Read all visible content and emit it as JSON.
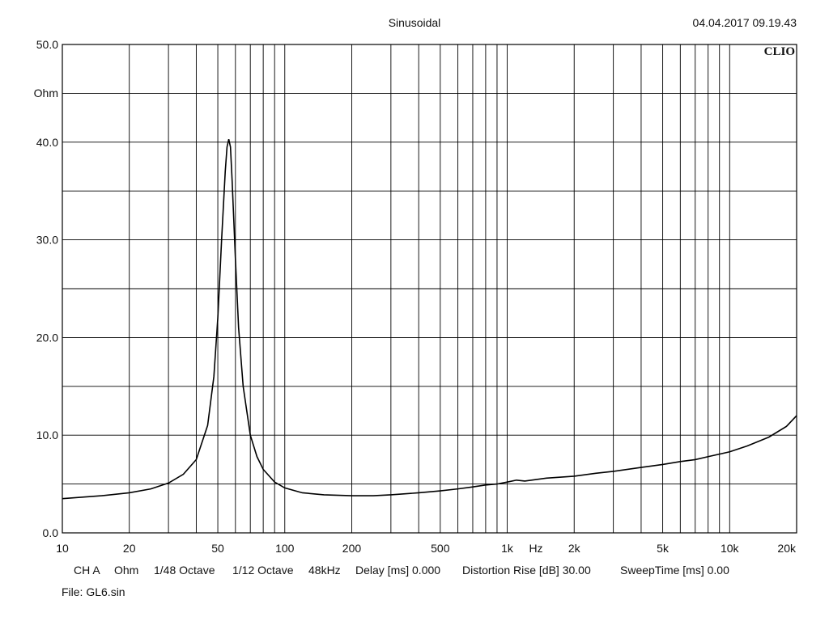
{
  "header": {
    "title": "Sinusoidal",
    "timestamp": "04.04.2017 09.19.43",
    "logo": "CLIO"
  },
  "chart_data": {
    "type": "line",
    "title": "Sinusoidal",
    "xlabel": "Hz",
    "ylabel": "Ohm",
    "xscale": "log",
    "xlim": [
      10,
      20000
    ],
    "ylim": [
      0,
      50
    ],
    "grid": true,
    "x_tick_labels": [
      {
        "value": 10,
        "label": "10"
      },
      {
        "value": 20,
        "label": "20"
      },
      {
        "value": 50,
        "label": "50"
      },
      {
        "value": 100,
        "label": "100"
      },
      {
        "value": 200,
        "label": "200"
      },
      {
        "value": 500,
        "label": "500"
      },
      {
        "value": 1000,
        "label": "1k"
      },
      {
        "value": 2000,
        "label": "2k"
      },
      {
        "value": 5000,
        "label": "5k"
      },
      {
        "value": 10000,
        "label": "10k"
      },
      {
        "value": 20000,
        "label": "20k"
      }
    ],
    "y_tick_labels": [
      {
        "value": 0,
        "label": "0.0"
      },
      {
        "value": 10,
        "label": "10.0"
      },
      {
        "value": 20,
        "label": "20.0"
      },
      {
        "value": 30,
        "label": "30.0"
      },
      {
        "value": 40,
        "label": "40.0"
      },
      {
        "value": 50,
        "label": "50.0"
      }
    ],
    "series": [
      {
        "x": [
          10,
          15,
          20,
          25,
          30,
          35,
          40,
          45,
          48,
          50,
          52,
          54,
          55,
          56,
          57,
          58,
          60,
          62,
          65,
          70,
          75,
          80,
          90,
          100,
          120,
          150,
          200,
          250,
          300,
          400,
          500,
          600,
          700,
          800,
          900,
          1000,
          1100,
          1200,
          1500,
          2000,
          2500,
          3000,
          4000,
          5000,
          6000,
          7000,
          8000,
          10000,
          12000,
          15000,
          18000,
          20000
        ],
        "y": [
          3.5,
          3.8,
          4.1,
          4.5,
          5.1,
          6.0,
          7.5,
          11.0,
          16.0,
          22.0,
          30.0,
          37.0,
          39.5,
          40.3,
          39.5,
          36.0,
          28.0,
          21.0,
          15.0,
          10.0,
          7.8,
          6.5,
          5.2,
          4.6,
          4.1,
          3.9,
          3.8,
          3.8,
          3.9,
          4.1,
          4.3,
          4.5,
          4.7,
          4.9,
          5.0,
          5.2,
          5.4,
          5.3,
          5.6,
          5.8,
          6.1,
          6.3,
          6.7,
          7.0,
          7.3,
          7.5,
          7.8,
          8.3,
          8.9,
          9.8,
          10.9,
          12.0
        ]
      }
    ]
  },
  "footer": {
    "channel": "CH A",
    "unit": "Ohm",
    "resolution": "1/48 Octave",
    "smoothing": "1/12 Octave",
    "sample_rate": "48kHz",
    "delay": "Delay [ms] 0.000",
    "distortion_rise": "Distortion Rise [dB] 30.00",
    "sweep_time": "SweepTime [ms] 0.00",
    "file": "File: GL6.sin"
  }
}
